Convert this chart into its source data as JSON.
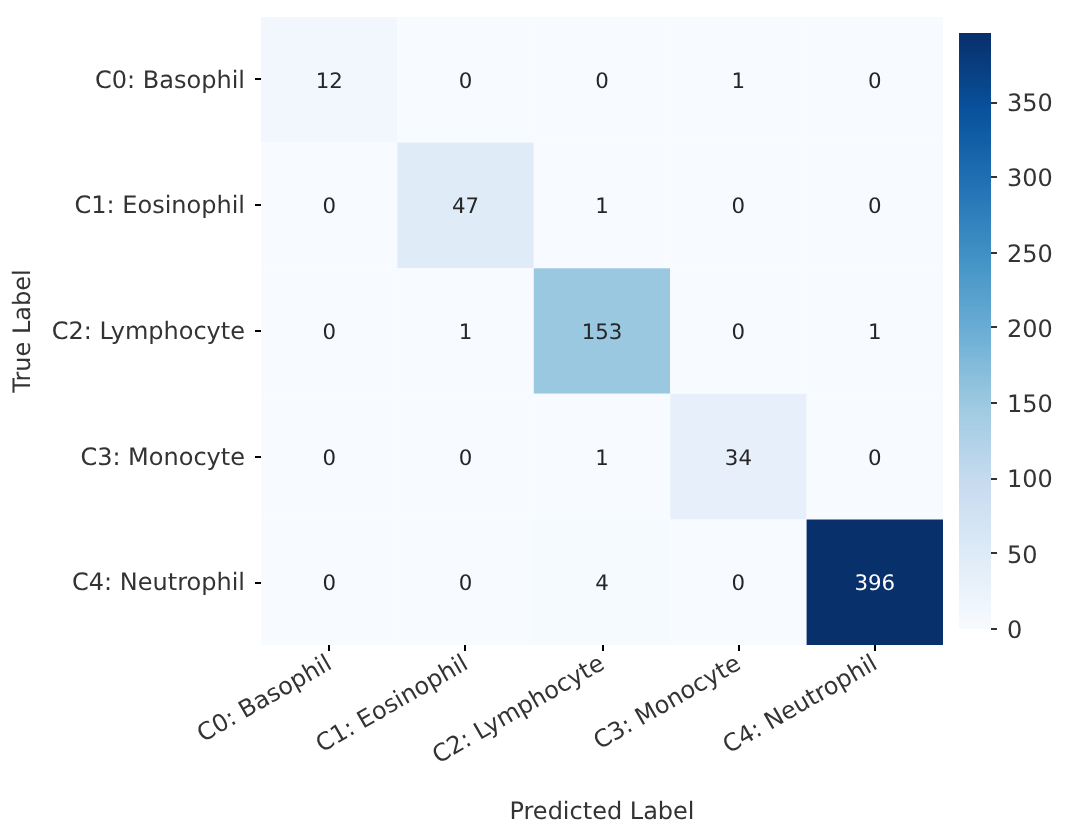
{
  "chart_data": {
    "type": "heatmap",
    "xlabel": "Predicted Label",
    "ylabel": "True Label",
    "categories": [
      "C0: Basophil",
      "C1: Eosinophil",
      "C2: Lymphocyte",
      "C3: Monocyte",
      "C4: Neutrophil"
    ],
    "y_categories": [
      "C0: Basophil",
      "C1: Eosinophil",
      "C2: Lymphocyte",
      "C3: Monocyte",
      "C4: Neutrophil"
    ],
    "cells": [
      [
        12,
        0,
        0,
        1,
        0
      ],
      [
        0,
        47,
        1,
        0,
        0
      ],
      [
        0,
        1,
        153,
        0,
        1
      ],
      [
        0,
        0,
        1,
        34,
        0
      ],
      [
        0,
        0,
        4,
        0,
        396
      ]
    ],
    "clim": [
      0,
      396
    ],
    "cticks": [
      0,
      50,
      100,
      150,
      200,
      250,
      300,
      350
    ],
    "data_labels": true
  }
}
